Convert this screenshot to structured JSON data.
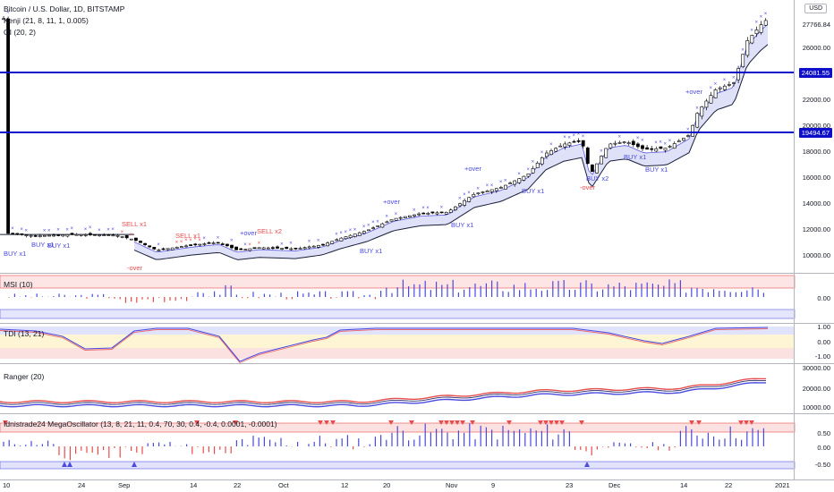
{
  "header": {
    "symbol_line": "Bitcoin / U.S. Dollar, 1D, BITSTAMP",
    "indicator_1": "Kenji (21, 8, 11, 1, 0.005)",
    "indicator_2": "OI (20, 2)",
    "currency_button": "USD"
  },
  "price_axis": {
    "ticks": [
      "26000.00",
      "22000.00",
      "20000.00",
      "18000.00",
      "16000.00",
      "14000.00",
      "12000.00",
      "10000.00"
    ],
    "last_price": "27766.84",
    "line_high_label": "24081.55",
    "line_low_label": "19494.67"
  },
  "colors": {
    "up": "#ffffff",
    "down": "#000000",
    "buy": "#4a4adf",
    "sell": "#e74c4c",
    "hline": "#0d10c8",
    "band_fill": "#c5c8f2"
  },
  "annotations": {
    "buy_x1": "BUY x1",
    "buy_x2": "BUY x2",
    "sell_x1": "SELL x1",
    "sell_x2": "SELL x2",
    "over": "-over",
    "plus_over": "+over"
  },
  "panes": {
    "msi": {
      "title": "MSI (10)",
      "ticks": [
        "0.00"
      ]
    },
    "tdi": {
      "title": "TDI (13, 21)",
      "ticks": [
        "1.00",
        "0.00",
        "-1.00"
      ]
    },
    "ranger": {
      "title": "Ranger (20)",
      "ticks": [
        "30000.00",
        "20000.00",
        "10000.00"
      ]
    },
    "mega": {
      "title": "Idnistrade24 MegaOscillator (13, 8, 21, 11, 0.4, 70, 30, 0.4, -0.4, 0.0001, -0.0001)",
      "ticks": [
        "0.50",
        "0.00",
        "-0.50"
      ]
    }
  },
  "time_axis": [
    "10",
    "24",
    "Sep",
    "14",
    "22",
    "Oct",
    "12",
    "20",
    "Nov",
    "9",
    "23",
    "Dec",
    "14",
    "22",
    "2021"
  ]
}
